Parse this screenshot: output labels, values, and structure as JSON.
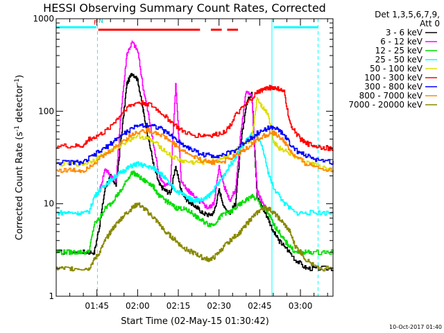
{
  "chart_data": {
    "type": "line",
    "title": "HESSI Observing Summary Count Rates, Corrected",
    "xlabel": "Start Time (02-May-15 01:30:42)",
    "ylabel": "Corrected Count Rate (s⁻¹ detector⁻¹)",
    "ylabel_parts": {
      "main": "Corrected Count Rate (s",
      "sup1": "-1",
      "mid": " detector",
      "sup2": "-1",
      "end": ")"
    },
    "yscale": "log",
    "ylim": [
      1,
      1000
    ],
    "xlim_minutes": [
      0,
      102
    ],
    "ytick_labels": [
      "1",
      "10",
      "100",
      "1000"
    ],
    "ytick_values": [
      1,
      10,
      100,
      1000
    ],
    "xtick_labels": [
      "01:45",
      "02:00",
      "02:15",
      "02:30",
      "02:45",
      "03:00"
    ],
    "xtick_minutes": [
      15,
      30,
      45,
      60,
      75,
      90
    ],
    "timestamp": "10-Oct-2017 01:40",
    "legend": {
      "placement": "outside-right",
      "header1": "Det 1,3,5,6,7,9,",
      "header2": "Att 0"
    },
    "series": [
      {
        "name": "3 - 6 keV",
        "color": "#000000",
        "x": [
          0,
          10,
          14,
          16,
          18,
          20,
          22,
          24,
          26,
          28,
          30,
          32,
          34,
          36,
          38,
          40,
          42,
          44,
          46,
          48,
          50,
          52,
          54,
          56,
          58,
          60,
          62,
          64,
          66,
          68,
          70,
          72,
          74,
          76,
          78,
          80,
          82,
          84,
          88,
          92,
          96,
          102
        ],
        "y": [
          3,
          3,
          3,
          6,
          15,
          20,
          16,
          55,
          200,
          260,
          220,
          100,
          50,
          25,
          16,
          14,
          13,
          25,
          14,
          11,
          10,
          9,
          8,
          7.5,
          8,
          14,
          9,
          8,
          10,
          45,
          120,
          160,
          12,
          9,
          7,
          5,
          4,
          3.5,
          2.5,
          2,
          2,
          2
        ]
      },
      {
        "name": "6 - 12 keV",
        "color": "#ff00ff",
        "x": [
          0,
          10,
          14,
          16,
          18,
          20,
          22,
          24,
          26,
          28,
          30,
          32,
          34,
          36,
          38,
          40,
          42,
          44,
          46,
          48,
          50,
          52,
          54,
          56,
          58,
          60,
          62,
          64,
          66,
          68,
          70,
          72,
          74,
          76,
          78,
          80,
          82,
          84,
          88,
          92,
          96,
          102
        ],
        "y": [
          null,
          null,
          null,
          14,
          24,
          20,
          18,
          110,
          420,
          560,
          450,
          180,
          90,
          40,
          20,
          16,
          16,
          200,
          18,
          14,
          13,
          11,
          10,
          9,
          10,
          25,
          15,
          11,
          14,
          60,
          170,
          150,
          14,
          10,
          8,
          null,
          null,
          null,
          null,
          null,
          null,
          null
        ]
      },
      {
        "name": "12 - 25 keV",
        "color": "#00dd00",
        "x": [
          0,
          4,
          8,
          12,
          14,
          16,
          18,
          20,
          22,
          24,
          26,
          28,
          30,
          32,
          34,
          36,
          38,
          40,
          42,
          44,
          46,
          48,
          50,
          52,
          54,
          56,
          58,
          60,
          62,
          64,
          66,
          68,
          70,
          72,
          74,
          76,
          78,
          80,
          82,
          84,
          86,
          88,
          90,
          92,
          96,
          102
        ],
        "y": [
          3,
          3,
          3,
          3,
          6,
          7,
          9,
          10,
          12,
          14,
          18,
          22,
          20,
          18,
          17,
          15,
          12,
          11,
          10,
          9,
          9,
          8.5,
          8,
          7,
          6.5,
          6,
          6,
          7,
          8,
          8,
          9,
          10,
          11,
          12,
          11,
          9,
          8,
          6,
          5,
          4,
          3.5,
          3,
          3,
          3,
          3,
          3
        ]
      },
      {
        "name": "25 - 50 keV",
        "color": "#00ffff",
        "x": [
          0,
          4,
          8,
          12,
          14,
          16,
          18,
          20,
          22,
          24,
          26,
          28,
          30,
          32,
          34,
          36,
          38,
          40,
          42,
          44,
          46,
          48,
          50,
          52,
          54,
          56,
          58,
          60,
          62,
          64,
          66,
          68,
          70,
          72,
          74,
          76,
          78,
          80,
          84,
          88,
          92,
          96,
          102
        ],
        "y": [
          8,
          8,
          8,
          8,
          12,
          14,
          16,
          18,
          20,
          22,
          24,
          26,
          27,
          26,
          25,
          24,
          22,
          19,
          16,
          14,
          13,
          12,
          11,
          11,
          11,
          12,
          14,
          17,
          21,
          26,
          32,
          40,
          48,
          56,
          52,
          40,
          22,
          15,
          10,
          8,
          8,
          8,
          8
        ]
      },
      {
        "name": "50 - 100 keV",
        "color": "#dddd00",
        "x": [
          0,
          6,
          10,
          14,
          18,
          22,
          26,
          30,
          34,
          38,
          42,
          46,
          50,
          54,
          58,
          62,
          66,
          70,
          72,
          74,
          76,
          78,
          80,
          82,
          84,
          88,
          92,
          96,
          102
        ],
        "y": [
          27,
          27,
          27,
          30,
          35,
          40,
          48,
          55,
          50,
          42,
          33,
          29,
          28,
          28,
          29,
          32,
          38,
          45,
          50,
          140,
          110,
          95,
          48,
          40,
          38,
          32,
          28,
          26,
          22
        ]
      },
      {
        "name": "100 - 300 keV",
        "color": "#ff0000",
        "x": [
          0,
          6,
          10,
          12,
          14,
          18,
          22,
          26,
          30,
          34,
          38,
          42,
          46,
          50,
          54,
          58,
          62,
          64,
          66,
          70,
          74,
          76,
          78,
          80,
          82,
          84,
          86,
          88,
          90,
          92,
          96,
          100,
          102
        ],
        "y": [
          42,
          42,
          42,
          50,
          52,
          60,
          80,
          110,
          125,
          120,
          100,
          78,
          62,
          55,
          55,
          55,
          60,
          70,
          90,
          120,
          160,
          170,
          180,
          180,
          175,
          160,
          75,
          60,
          50,
          45,
          42,
          40,
          38
        ]
      },
      {
        "name": "300 - 800 keV",
        "color": "#0000ff",
        "x": [
          0,
          6,
          10,
          14,
          18,
          22,
          26,
          30,
          34,
          38,
          42,
          46,
          50,
          54,
          58,
          62,
          66,
          70,
          74,
          78,
          80,
          82,
          84,
          86,
          88,
          92,
          96,
          102
        ],
        "y": [
          28,
          28,
          28,
          34,
          40,
          50,
          60,
          70,
          72,
          66,
          55,
          45,
          38,
          34,
          33,
          34,
          38,
          48,
          58,
          66,
          67,
          62,
          55,
          45,
          38,
          33,
          30,
          28
        ]
      },
      {
        "name": "800 - 7000 keV",
        "color": "#ff8800",
        "x": [
          0,
          6,
          10,
          14,
          18,
          22,
          26,
          30,
          34,
          38,
          42,
          46,
          50,
          54,
          58,
          62,
          66,
          70,
          74,
          78,
          80,
          82,
          84,
          86,
          88,
          92,
          96,
          102
        ],
        "y": [
          23,
          23,
          23,
          28,
          34,
          42,
          52,
          60,
          62,
          57,
          48,
          38,
          33,
          29,
          28,
          29,
          33,
          40,
          50,
          57,
          58,
          54,
          47,
          38,
          32,
          27,
          25,
          23
        ]
      },
      {
        "name": "7000 - 20000 keV",
        "color": "#888800",
        "x": [
          0,
          4,
          8,
          12,
          14,
          16,
          18,
          20,
          22,
          24,
          26,
          28,
          30,
          32,
          34,
          36,
          38,
          40,
          42,
          44,
          46,
          48,
          50,
          52,
          54,
          56,
          58,
          60,
          62,
          64,
          66,
          68,
          70,
          72,
          74,
          76,
          78,
          80,
          82,
          84,
          86,
          88,
          90,
          92,
          96,
          102
        ],
        "y": [
          2,
          2,
          2,
          2,
          2.5,
          3,
          4,
          5,
          6,
          7,
          8,
          9,
          10,
          9,
          8,
          7,
          6,
          5,
          4.5,
          4,
          3.5,
          3.2,
          3,
          2.8,
          2.6,
          2.5,
          2.6,
          3,
          3.5,
          4,
          4.5,
          5,
          6,
          7,
          8,
          9,
          9,
          8,
          7,
          6,
          5,
          3.5,
          3,
          2.5,
          2,
          2
        ]
      }
    ],
    "annotations": {
      "flag_letters": [
        {
          "text": "F",
          "color": "#ff0000",
          "x_minute": 14.5,
          "y_value": 860
        },
        {
          "text": "N",
          "color": "#00cccc",
          "x_minute": 16.5,
          "y_value": 900
        }
      ],
      "night_bars_minutes": [
        [
          0,
          14.8
        ],
        [
          80.2,
          96.5
        ]
      ],
      "flare_bars_minutes": [
        [
          15.5,
          53
        ],
        [
          57,
          61
        ],
        [
          63,
          67
        ]
      ],
      "vertical_dashed_minutes": [
        15.2,
        96.5
      ],
      "vertical_solid_minutes": [
        79.5
      ],
      "colors": {
        "night": "#00ffff",
        "flare": "#ff0000",
        "frame": "#000000"
      }
    }
  }
}
